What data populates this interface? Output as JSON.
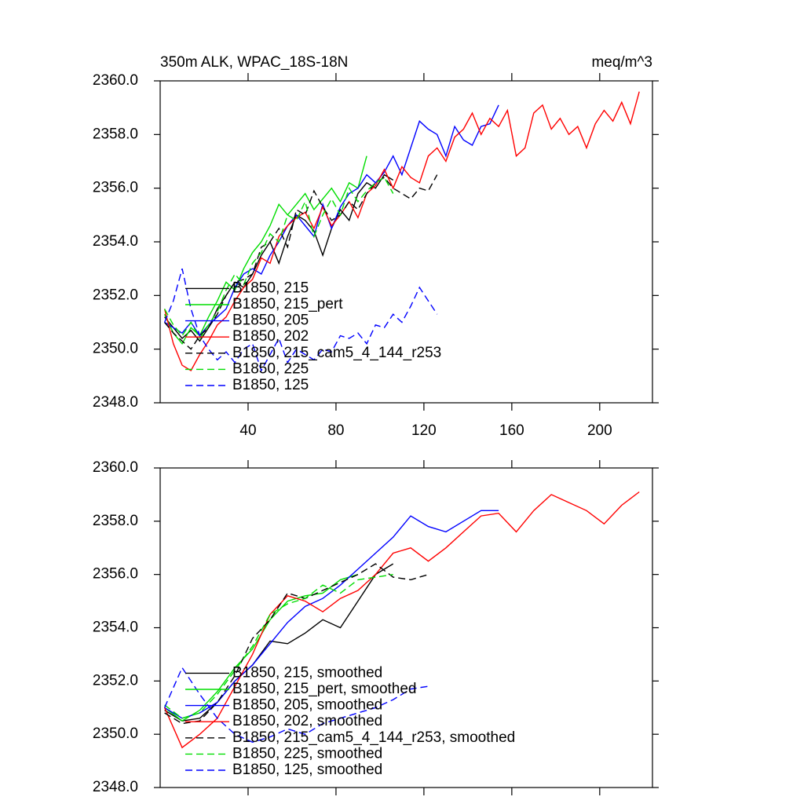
{
  "chart_data": [
    {
      "type": "line",
      "title": "350m ALK, WPAC_18S-18N",
      "units": "meq/m^3",
      "xlim": [
        0,
        224
      ],
      "xticks": [
        40,
        80,
        120,
        160,
        200
      ],
      "xtick_labels": true,
      "ylim": [
        2348,
        2360
      ],
      "yticks": [
        {
          "value": 2348,
          "label": "2348.0"
        },
        {
          "value": 2350,
          "label": "2350.0"
        },
        {
          "value": 2352,
          "label": "2352.0"
        },
        {
          "value": 2354,
          "label": "2354.0"
        },
        {
          "value": 2356,
          "label": "2356.0"
        },
        {
          "value": 2358,
          "label": "2358.0"
        },
        {
          "value": 2360,
          "label": "2360.0"
        }
      ],
      "legend": "lower left",
      "series": [
        {
          "name": "B1850, 215",
          "color": "#000000",
          "dashed": false,
          "x": [
            2,
            6,
            10,
            14,
            18,
            22,
            26,
            30,
            34,
            38,
            42,
            46,
            50,
            54,
            58,
            62,
            66,
            70,
            74,
            78,
            82,
            86,
            90,
            94,
            98,
            102,
            106
          ],
          "values": [
            2351.2,
            2350.8,
            2350.4,
            2350.7,
            2350.3,
            2350.8,
            2351.5,
            2352.0,
            2352.5,
            2352.3,
            2352.8,
            2353.5,
            2354.0,
            2353.2,
            2354.2,
            2355.0,
            2354.8,
            2354.4,
            2353.5,
            2354.5,
            2355.2,
            2354.8,
            2355.8,
            2356.2,
            2356.0,
            2356.5,
            2356.3
          ]
        },
        {
          "name": "B1850, 215_pert",
          "color": "#00dd00",
          "dashed": false,
          "x": [
            2,
            6,
            10,
            14,
            18,
            22,
            26,
            30,
            34,
            38,
            42,
            46,
            50,
            54,
            58,
            62,
            66,
            70,
            74,
            78,
            82,
            86,
            90,
            94
          ],
          "values": [
            2351.3,
            2350.6,
            2350.2,
            2350.8,
            2350.5,
            2351.2,
            2351.8,
            2352.5,
            2352.2,
            2353.0,
            2353.6,
            2354.0,
            2354.6,
            2355.4,
            2355.0,
            2355.4,
            2355.8,
            2355.2,
            2355.6,
            2356.0,
            2355.5,
            2356.2,
            2356.0,
            2357.2
          ]
        },
        {
          "name": "B1850, 205",
          "color": "#0000ff",
          "dashed": false,
          "x": [
            2,
            6,
            10,
            14,
            18,
            22,
            26,
            30,
            34,
            38,
            42,
            46,
            50,
            54,
            58,
            62,
            66,
            70,
            74,
            78,
            82,
            86,
            90,
            94,
            98,
            102,
            106,
            110,
            114,
            118,
            122,
            126,
            130,
            134,
            138,
            142,
            146,
            150,
            154
          ],
          "values": [
            2351.0,
            2350.8,
            2350.6,
            2351.0,
            2350.5,
            2350.9,
            2351.2,
            2351.5,
            2352.3,
            2352.8,
            2353.0,
            2352.8,
            2353.5,
            2354.0,
            2354.6,
            2355.0,
            2354.6,
            2354.2,
            2355.4,
            2354.5,
            2355.3,
            2355.8,
            2356.0,
            2356.5,
            2356.2,
            2356.6,
            2357.2,
            2356.5,
            2357.5,
            2358.5,
            2358.2,
            2358.0,
            2357.2,
            2358.3,
            2357.8,
            2357.6,
            2358.3,
            2358.4,
            2359.1
          ]
        },
        {
          "name": "B1850, 202",
          "color": "#ff0000",
          "dashed": false,
          "x": [
            2,
            6,
            10,
            14,
            18,
            22,
            26,
            30,
            34,
            38,
            42,
            46,
            50,
            54,
            58,
            62,
            66,
            70,
            74,
            78,
            82,
            86,
            90,
            94,
            98,
            102,
            106,
            110,
            114,
            118,
            122,
            126,
            130,
            134,
            138,
            142,
            146,
            150,
            154,
            158,
            162,
            166,
            170,
            174,
            178,
            182,
            186,
            190,
            194,
            198,
            202,
            206,
            210,
            214,
            218
          ],
          "values": [
            2351.5,
            2350.2,
            2349.4,
            2349.2,
            2349.8,
            2350.3,
            2350.9,
            2351.2,
            2351.8,
            2352.3,
            2352.6,
            2353.4,
            2353.2,
            2354.2,
            2354.6,
            2354.9,
            2355.1,
            2354.5,
            2355.3,
            2354.6,
            2355.0,
            2355.5,
            2354.9,
            2355.8,
            2356.1,
            2356.7,
            2356.0,
            2356.8,
            2356.4,
            2356.2,
            2357.2,
            2357.5,
            2357.0,
            2357.9,
            2358.2,
            2358.8,
            2358.0,
            2358.6,
            2358.3,
            2358.9,
            2357.2,
            2357.5,
            2358.8,
            2359.1,
            2358.2,
            2358.6,
            2358.0,
            2358.3,
            2357.5,
            2358.4,
            2358.9,
            2358.5,
            2359.2,
            2358.4,
            2359.6
          ]
        },
        {
          "name": "B1850, 215_cam5_4_144_r253",
          "color": "#000000",
          "dashed": true,
          "x": [
            2,
            6,
            10,
            14,
            18,
            22,
            26,
            30,
            34,
            38,
            42,
            46,
            50,
            54,
            58,
            62,
            66,
            70,
            74,
            78,
            82,
            86,
            90,
            94,
            98,
            102,
            106,
            110,
            114,
            118,
            122,
            126
          ],
          "values": [
            2351.0,
            2350.6,
            2350.3,
            2350.0,
            2350.5,
            2350.8,
            2351.3,
            2352.0,
            2352.5,
            2352.6,
            2352.8,
            2353.8,
            2354.0,
            2354.5,
            2353.8,
            2355.2,
            2355.0,
            2355.9,
            2355.3,
            2354.8,
            2355.0,
            2355.5,
            2355.2,
            2355.8,
            2356.2,
            2356.4,
            2356.0,
            2355.8,
            2355.6,
            2356.0,
            2355.9,
            2356.5
          ]
        },
        {
          "name": "B1850, 225",
          "color": "#00dd00",
          "dashed": true,
          "x": [
            2,
            6,
            10,
            14,
            18,
            22,
            26,
            30,
            34,
            38,
            42,
            46,
            50,
            54,
            58,
            62,
            66,
            70,
            74,
            78,
            82,
            86,
            90,
            94,
            98,
            102,
            106
          ],
          "values": [
            2351.5,
            2350.9,
            2350.5,
            2351.0,
            2350.4,
            2350.9,
            2351.4,
            2352.2,
            2352.8,
            2352.4,
            2353.2,
            2353.6,
            2354.3,
            2354.0,
            2355.0,
            2354.8,
            2355.5,
            2354.2,
            2355.0,
            2355.6,
            2355.0,
            2356.0,
            2355.5,
            2355.9,
            2356.2,
            2356.4,
            2355.8
          ]
        },
        {
          "name": "B1850, 125",
          "color": "#0000ff",
          "dashed": true,
          "x": [
            2,
            6,
            10,
            14,
            18,
            22,
            26,
            30,
            34,
            38,
            42,
            46,
            50,
            54,
            58,
            62,
            66,
            70,
            74,
            78,
            82,
            86,
            90,
            94,
            98,
            102,
            106,
            110,
            114,
            118,
            122,
            126
          ],
          "values": [
            2351.0,
            2351.8,
            2353.0,
            2351.5,
            2350.5,
            2350.0,
            2349.6,
            2349.9,
            2349.5,
            2350.0,
            2350.2,
            2349.2,
            2349.8,
            2350.4,
            2349.5,
            2350.0,
            2349.8,
            2349.6,
            2350.0,
            2349.9,
            2350.5,
            2350.4,
            2350.6,
            2350.2,
            2350.9,
            2350.8,
            2351.3,
            2351.0,
            2351.6,
            2352.3,
            2351.8,
            2351.3
          ]
        }
      ]
    },
    {
      "type": "line",
      "xlim": [
        0,
        224
      ],
      "xticks": [
        40,
        80,
        120,
        160,
        200
      ],
      "xtick_labels": false,
      "ylim": [
        2348,
        2360
      ],
      "yticks": [
        {
          "value": 2348,
          "label": "2348.0"
        },
        {
          "value": 2350,
          "label": "2350.0"
        },
        {
          "value": 2352,
          "label": "2352.0"
        },
        {
          "value": 2354,
          "label": "2354.0"
        },
        {
          "value": 2356,
          "label": "2356.0"
        },
        {
          "value": 2358,
          "label": "2358.0"
        },
        {
          "value": 2360,
          "label": "2360.0"
        }
      ],
      "legend": "lower left",
      "series": [
        {
          "name": "B1850, 215, smoothed",
          "color": "#000000",
          "dashed": false,
          "x": [
            2,
            10,
            18,
            26,
            34,
            42,
            50,
            58,
            66,
            74,
            82,
            90,
            98,
            106
          ],
          "values": [
            2350.9,
            2350.5,
            2350.6,
            2351.2,
            2352.0,
            2352.6,
            2353.5,
            2353.4,
            2353.8,
            2354.3,
            2354.0,
            2355.0,
            2356.0,
            2356.4
          ]
        },
        {
          "name": "B1850, 215_pert, smoothed",
          "color": "#00dd00",
          "dashed": false,
          "x": [
            2,
            10,
            18,
            26,
            34,
            42,
            50,
            58,
            66,
            74,
            82,
            90
          ],
          "values": [
            2351.0,
            2350.5,
            2350.9,
            2351.6,
            2352.5,
            2353.2,
            2354.3,
            2355.0,
            2355.2,
            2355.3,
            2355.8,
            2356.0
          ]
        },
        {
          "name": "B1850, 205, smoothed",
          "color": "#0000ff",
          "dashed": false,
          "x": [
            2,
            10,
            18,
            26,
            34,
            42,
            50,
            58,
            66,
            74,
            82,
            90,
            98,
            106,
            114,
            122,
            130,
            138,
            146,
            154
          ],
          "values": [
            2351.0,
            2350.6,
            2350.8,
            2351.2,
            2352.0,
            2352.6,
            2353.4,
            2354.2,
            2354.8,
            2355.1,
            2355.6,
            2356.2,
            2356.8,
            2357.4,
            2358.2,
            2357.8,
            2357.6,
            2358.0,
            2358.4,
            2358.4
          ]
        },
        {
          "name": "B1850, 202, smoothed",
          "color": "#ff0000",
          "dashed": false,
          "x": [
            2,
            10,
            18,
            26,
            34,
            42,
            50,
            58,
            66,
            74,
            82,
            90,
            98,
            106,
            114,
            122,
            130,
            138,
            146,
            154,
            162,
            170,
            178,
            186,
            194,
            202,
            210,
            218
          ],
          "values": [
            2351.0,
            2349.5,
            2350.0,
            2350.6,
            2351.8,
            2353.0,
            2354.5,
            2355.2,
            2355.0,
            2354.6,
            2355.1,
            2355.4,
            2356.0,
            2356.8,
            2357.0,
            2356.5,
            2357.0,
            2357.6,
            2358.2,
            2358.3,
            2357.6,
            2358.4,
            2359.0,
            2358.7,
            2358.4,
            2357.9,
            2358.6,
            2359.1
          ]
        },
        {
          "name": "B1850, 215_cam5_4_144_r253, smoothed",
          "color": "#000000",
          "dashed": true,
          "x": [
            2,
            10,
            18,
            26,
            34,
            42,
            50,
            58,
            66,
            74,
            82,
            90,
            98,
            106,
            114,
            122
          ],
          "values": [
            2350.8,
            2350.4,
            2350.5,
            2351.2,
            2352.2,
            2353.6,
            2354.3,
            2355.3,
            2355.1,
            2355.4,
            2355.7,
            2356.0,
            2356.4,
            2355.9,
            2355.8,
            2356.0
          ]
        },
        {
          "name": "B1850, 225, smoothed",
          "color": "#00dd00",
          "dashed": true,
          "x": [
            2,
            10,
            18,
            26,
            34,
            42,
            50,
            58,
            66,
            74,
            82,
            90,
            98,
            106
          ],
          "values": [
            2351.1,
            2350.6,
            2350.8,
            2351.5,
            2352.4,
            2353.3,
            2354.5,
            2354.9,
            2355.1,
            2355.6,
            2355.3,
            2355.8,
            2355.9,
            2356.0
          ]
        },
        {
          "name": "B1850, 125, smoothed",
          "color": "#0000ff",
          "dashed": true,
          "x": [
            2,
            10,
            18,
            26,
            34,
            42,
            50,
            58,
            66,
            74,
            82,
            90,
            98,
            106,
            114,
            122
          ],
          "values": [
            2351.0,
            2352.5,
            2351.5,
            2350.6,
            2350.0,
            2349.7,
            2349.9,
            2350.2,
            2350.0,
            2350.4,
            2350.6,
            2350.8,
            2351.0,
            2351.3,
            2351.7,
            2351.8
          ]
        }
      ]
    }
  ]
}
